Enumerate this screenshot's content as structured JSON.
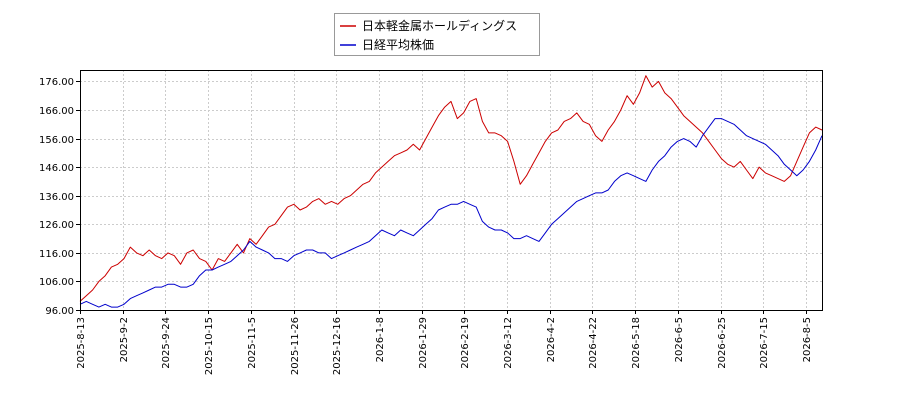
{
  "chart_data": {
    "type": "line",
    "title": "",
    "xlabel": "",
    "ylabel": "",
    "ylim": [
      96,
      180
    ],
    "y_ticks": [
      "96.00",
      "106.00",
      "116.00",
      "126.00",
      "136.00",
      "146.00",
      "156.00",
      "166.00",
      "176.00"
    ],
    "x_ticks": [
      "2025-8-13",
      "2025-9-2",
      "2025-9-24",
      "2025-10-15",
      "2025-11-5",
      "2025-11-26",
      "2025-12-16",
      "2026-1-8",
      "2026-1-29",
      "2026-2-19",
      "2026-3-12",
      "2026-4-2",
      "2026-4-22",
      "2026-5-18",
      "2026-6-5",
      "2026-6-25",
      "2026-7-15",
      "2026-8-5"
    ],
    "grid": true,
    "legend_position": "top-center",
    "series": [
      {
        "name": "日本軽金属ホールディングス",
        "color": "#cc0000",
        "values": [
          [
            0,
            99
          ],
          [
            1,
            101
          ],
          [
            2,
            103
          ],
          [
            3,
            106
          ],
          [
            4,
            108
          ],
          [
            5,
            111
          ],
          [
            6,
            112
          ],
          [
            7,
            114
          ],
          [
            8,
            118
          ],
          [
            9,
            116
          ],
          [
            10,
            115
          ],
          [
            11,
            117
          ],
          [
            12,
            115
          ],
          [
            13,
            114
          ],
          [
            14,
            116
          ],
          [
            15,
            115
          ],
          [
            16,
            112
          ],
          [
            17,
            116
          ],
          [
            18,
            117
          ],
          [
            19,
            114
          ],
          [
            20,
            113
          ],
          [
            21,
            110
          ],
          [
            22,
            114
          ],
          [
            23,
            113
          ],
          [
            24,
            116
          ],
          [
            25,
            119
          ],
          [
            26,
            116
          ],
          [
            27,
            121
          ],
          [
            28,
            119
          ],
          [
            29,
            122
          ],
          [
            30,
            125
          ],
          [
            31,
            126
          ],
          [
            32,
            129
          ],
          [
            33,
            132
          ],
          [
            34,
            133
          ],
          [
            35,
            131
          ],
          [
            36,
            132
          ],
          [
            37,
            134
          ],
          [
            38,
            135
          ],
          [
            39,
            133
          ],
          [
            40,
            134
          ],
          [
            41,
            133
          ],
          [
            42,
            135
          ],
          [
            43,
            136
          ],
          [
            44,
            138
          ],
          [
            45,
            140
          ],
          [
            46,
            141
          ],
          [
            47,
            144
          ],
          [
            48,
            146
          ],
          [
            49,
            148
          ],
          [
            50,
            150
          ],
          [
            51,
            151
          ],
          [
            52,
            152
          ],
          [
            53,
            154
          ],
          [
            54,
            152
          ],
          [
            55,
            156
          ],
          [
            56,
            160
          ],
          [
            57,
            164
          ],
          [
            58,
            167
          ],
          [
            59,
            169
          ],
          [
            60,
            163
          ],
          [
            61,
            165
          ],
          [
            62,
            169
          ],
          [
            63,
            170
          ],
          [
            64,
            162
          ],
          [
            65,
            158
          ],
          [
            66,
            158
          ],
          [
            67,
            157
          ],
          [
            68,
            155
          ],
          [
            69,
            148
          ],
          [
            70,
            140
          ],
          [
            71,
            143
          ],
          [
            72,
            147
          ],
          [
            73,
            151
          ],
          [
            74,
            155
          ],
          [
            75,
            158
          ],
          [
            76,
            159
          ],
          [
            77,
            162
          ],
          [
            78,
            163
          ],
          [
            79,
            165
          ],
          [
            80,
            162
          ],
          [
            81,
            161
          ],
          [
            82,
            157
          ],
          [
            83,
            155
          ],
          [
            84,
            159
          ],
          [
            85,
            162
          ],
          [
            86,
            166
          ],
          [
            87,
            171
          ],
          [
            88,
            168
          ],
          [
            89,
            172
          ],
          [
            90,
            178
          ],
          [
            91,
            174
          ],
          [
            92,
            176
          ],
          [
            93,
            172
          ],
          [
            94,
            170
          ],
          [
            95,
            167
          ],
          [
            96,
            164
          ],
          [
            97,
            162
          ],
          [
            98,
            160
          ],
          [
            99,
            158
          ],
          [
            100,
            155
          ],
          [
            101,
            152
          ],
          [
            102,
            149
          ],
          [
            103,
            147
          ],
          [
            104,
            146
          ],
          [
            105,
            148
          ],
          [
            106,
            145
          ],
          [
            107,
            142
          ],
          [
            108,
            146
          ],
          [
            109,
            144
          ],
          [
            110,
            143
          ],
          [
            111,
            142
          ],
          [
            112,
            141
          ],
          [
            113,
            143
          ],
          [
            114,
            148
          ],
          [
            115,
            153
          ],
          [
            116,
            158
          ],
          [
            117,
            160
          ],
          [
            118,
            159
          ]
        ]
      },
      {
        "name": "日経平均株価",
        "color": "#0000cc",
        "values": [
          [
            0,
            98
          ],
          [
            1,
            99
          ],
          [
            2,
            98
          ],
          [
            3,
            97
          ],
          [
            4,
            98
          ],
          [
            5,
            97
          ],
          [
            6,
            97
          ],
          [
            7,
            98
          ],
          [
            8,
            100
          ],
          [
            9,
            101
          ],
          [
            10,
            102
          ],
          [
            11,
            103
          ],
          [
            12,
            104
          ],
          [
            13,
            104
          ],
          [
            14,
            105
          ],
          [
            15,
            105
          ],
          [
            16,
            104
          ],
          [
            17,
            104
          ],
          [
            18,
            105
          ],
          [
            19,
            108
          ],
          [
            20,
            110
          ],
          [
            21,
            110
          ],
          [
            22,
            111
          ],
          [
            23,
            112
          ],
          [
            24,
            113
          ],
          [
            25,
            115
          ],
          [
            26,
            117
          ],
          [
            27,
            120
          ],
          [
            28,
            118
          ],
          [
            29,
            117
          ],
          [
            30,
            116
          ],
          [
            31,
            114
          ],
          [
            32,
            114
          ],
          [
            33,
            113
          ],
          [
            34,
            115
          ],
          [
            35,
            116
          ],
          [
            36,
            117
          ],
          [
            37,
            117
          ],
          [
            38,
            116
          ],
          [
            39,
            116
          ],
          [
            40,
            114
          ],
          [
            41,
            115
          ],
          [
            42,
            116
          ],
          [
            43,
            117
          ],
          [
            44,
            118
          ],
          [
            45,
            119
          ],
          [
            46,
            120
          ],
          [
            47,
            122
          ],
          [
            48,
            124
          ],
          [
            49,
            123
          ],
          [
            50,
            122
          ],
          [
            51,
            124
          ],
          [
            52,
            123
          ],
          [
            53,
            122
          ],
          [
            54,
            124
          ],
          [
            55,
            126
          ],
          [
            56,
            128
          ],
          [
            57,
            131
          ],
          [
            58,
            132
          ],
          [
            59,
            133
          ],
          [
            60,
            133
          ],
          [
            61,
            134
          ],
          [
            62,
            133
          ],
          [
            63,
            132
          ],
          [
            64,
            127
          ],
          [
            65,
            125
          ],
          [
            66,
            124
          ],
          [
            67,
            124
          ],
          [
            68,
            123
          ],
          [
            69,
            121
          ],
          [
            70,
            121
          ],
          [
            71,
            122
          ],
          [
            72,
            121
          ],
          [
            73,
            120
          ],
          [
            74,
            123
          ],
          [
            75,
            126
          ],
          [
            76,
            128
          ],
          [
            77,
            130
          ],
          [
            78,
            132
          ],
          [
            79,
            134
          ],
          [
            80,
            135
          ],
          [
            81,
            136
          ],
          [
            82,
            137
          ],
          [
            83,
            137
          ],
          [
            84,
            138
          ],
          [
            85,
            141
          ],
          [
            86,
            143
          ],
          [
            87,
            144
          ],
          [
            88,
            143
          ],
          [
            89,
            142
          ],
          [
            90,
            141
          ],
          [
            91,
            145
          ],
          [
            92,
            148
          ],
          [
            93,
            150
          ],
          [
            94,
            153
          ],
          [
            95,
            155
          ],
          [
            96,
            156
          ],
          [
            97,
            155
          ],
          [
            98,
            153
          ],
          [
            99,
            157
          ],
          [
            100,
            160
          ],
          [
            101,
            163
          ],
          [
            102,
            163
          ],
          [
            103,
            162
          ],
          [
            104,
            161
          ],
          [
            105,
            159
          ],
          [
            106,
            157
          ],
          [
            107,
            156
          ],
          [
            108,
            155
          ],
          [
            109,
            154
          ],
          [
            110,
            152
          ],
          [
            111,
            150
          ],
          [
            112,
            147
          ],
          [
            113,
            145
          ],
          [
            114,
            143
          ],
          [
            115,
            145
          ],
          [
            116,
            148
          ],
          [
            117,
            152
          ],
          [
            118,
            157
          ]
        ]
      }
    ]
  }
}
